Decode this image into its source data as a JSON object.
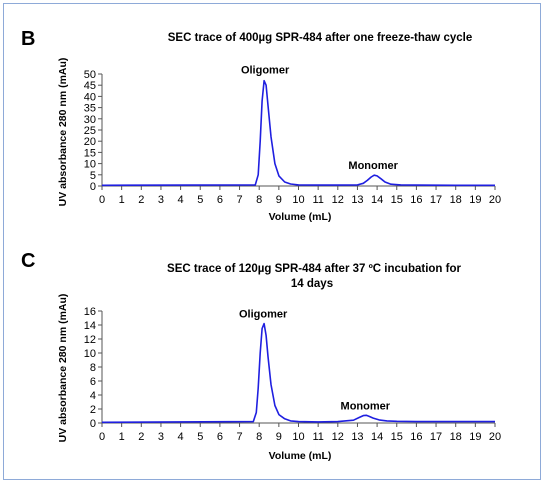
{
  "chart_data": [
    {
      "panel": "B",
      "type": "line",
      "title": "SEC trace of 400µg SPR-484 after one freeze-thaw cycle",
      "xlabel": "Volume (mL)",
      "ylabel": "UV absorbance 280 nm (mAu)",
      "xlim": [
        0,
        20
      ],
      "ylim": [
        0,
        50
      ],
      "xticks": [
        0,
        1,
        2,
        3,
        4,
        5,
        6,
        7,
        8,
        9,
        10,
        11,
        12,
        13,
        14,
        15,
        16,
        17,
        18,
        19,
        20
      ],
      "yticks": [
        0,
        5,
        10,
        15,
        20,
        25,
        30,
        35,
        40,
        45,
        50
      ],
      "grid": false,
      "line_color": "#1f1fe0",
      "annotations": [
        {
          "text": "Oligomer",
          "x": 8.3,
          "y": 47.5
        },
        {
          "text": "Monomer",
          "x": 13.8,
          "y": 5.0
        }
      ],
      "x": [
        0,
        7.8,
        7.95,
        8.05,
        8.15,
        8.25,
        8.35,
        8.45,
        8.6,
        8.8,
        9.0,
        9.3,
        9.6,
        10,
        11,
        12,
        13.0,
        13.3,
        13.5,
        13.7,
        13.85,
        14.0,
        14.2,
        14.4,
        14.7,
        15.2,
        16,
        18,
        20
      ],
      "y": [
        0.3,
        0.5,
        5,
        20,
        38,
        47,
        45,
        36,
        22,
        10,
        4.5,
        1.8,
        0.9,
        0.5,
        0.4,
        0.4,
        0.5,
        1.2,
        2.5,
        4.0,
        4.8,
        4.5,
        3.2,
        1.8,
        0.8,
        0.5,
        0.4,
        0.3,
        0.3
      ]
    },
    {
      "panel": "C",
      "type": "line",
      "title": "SEC trace of 120µg SPR-484 after 37 ºC incubation for 14 days",
      "title_lines": [
        "SEC trace of 120µg SPR-484 after 37 ºC incubation for",
        "14 days"
      ],
      "xlabel": "Volume (mL)",
      "ylabel": "UV absorbance 280 nm (mAu)",
      "xlim": [
        0,
        20
      ],
      "ylim": [
        0,
        16
      ],
      "xticks": [
        0,
        1,
        2,
        3,
        4,
        5,
        6,
        7,
        8,
        9,
        10,
        11,
        12,
        13,
        14,
        15,
        16,
        17,
        18,
        19,
        20
      ],
      "yticks": [
        0,
        2,
        4,
        6,
        8,
        10,
        12,
        14,
        16
      ],
      "grid": false,
      "line_color": "#1f1fe0",
      "annotations": [
        {
          "text": "Oligomer",
          "x": 8.2,
          "y": 14.2
        },
        {
          "text": "Monomer",
          "x": 13.4,
          "y": 1.1
        }
      ],
      "x": [
        0,
        7.7,
        7.85,
        7.95,
        8.05,
        8.15,
        8.25,
        8.35,
        8.45,
        8.6,
        8.8,
        9.0,
        9.3,
        9.6,
        10,
        11,
        12,
        12.8,
        13.1,
        13.3,
        13.45,
        13.6,
        13.8,
        14.1,
        14.5,
        15,
        16,
        18,
        20
      ],
      "y": [
        0.1,
        0.2,
        1.5,
        5,
        10,
        13.5,
        14.2,
        12.5,
        9.5,
        5.5,
        2.5,
        1.2,
        0.6,
        0.3,
        0.2,
        0.15,
        0.2,
        0.4,
        0.8,
        1.05,
        1.1,
        0.95,
        0.7,
        0.45,
        0.3,
        0.25,
        0.2,
        0.2,
        0.2
      ]
    }
  ]
}
